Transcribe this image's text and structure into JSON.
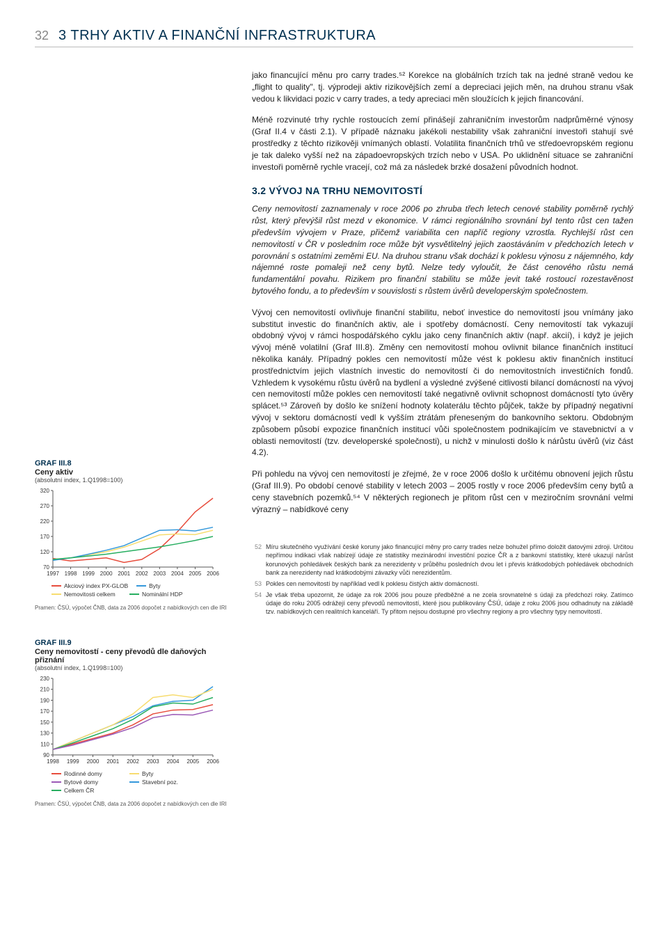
{
  "header": {
    "page_number": "32",
    "title": "3 TRHY AKTIV A FINANČNÍ INFRASTRUKTURA"
  },
  "paragraphs": {
    "p1": "jako financující měnu pro carry trades.⁵² Korekce na globálních trzích tak na jedné straně vedou ke „flight to quality\", tj. výprodeji aktiv rizikovějších zemí a depreciaci jejich měn, na druhou stranu však vedou k likvidaci pozic v carry trades, a tedy apreciaci měn sloužících k jejich financování.",
    "p2": "Méně rozvinuté trhy rychle rostoucích zemí přinášejí zahraničním investorům nadprůměrné výnosy (Graf II.4 v části 2.1). V případě náznaku jakékoli nestability však zahraniční investoři stahují své prostředky z těchto rizikověji vnímaných oblastí. Volatilita finančních trhů ve středoevropském regionu je tak daleko vyšší než na západoevropských trzích nebo v USA. Po uklidnění situace se zahraniční investoři poměrně rychle vracejí, což má za následek brzké dosažení původních hodnot.",
    "section_heading": "3.2 VÝVOJ NA TRHU NEMOVITOSTÍ",
    "intro": "Ceny nemovitostí zaznamenaly v roce 2006 po zhruba třech letech cenové stability poměrně rychlý růst, který převýšil růst mezd v ekonomice. V rámci regionálního srovnání byl tento růst cen tažen především vývojem v Praze, přičemž variabilita cen napříč regiony vzrostla. Rychlejší růst cen nemovitostí v ČR v posledním roce může být vysvětlitelný jejich zaostáváním v předchozích letech v porovnání s ostatními zeměmi EU. Na druhou stranu však dochází k poklesu výnosu z nájemného, kdy nájemné roste pomaleji než ceny bytů. Nelze tedy vyloučit, že část cenového růstu nemá fundamentální povahu. Rizikem pro finanční stabilitu se může jevit také rostoucí rozestavěnost bytového fondu, a to především v souvislosti s růstem úvěrů developerským společnostem.",
    "p3": "Vývoj cen nemovitostí ovlivňuje finanční stabilitu, neboť investice do nemovitostí jsou vnímány jako substitut investic do finančních aktiv, ale i spotřeby domácností. Ceny nemovitostí tak vykazují obdobný vývoj v rámci hospodářského cyklu jako ceny finančních aktiv (např. akcií), i když je jejich vývoj méně volatilní (Graf III.8). Změny cen nemovitostí mohou ovlivnit bilance finančních institucí několika kanály. Případný pokles cen nemovitostí může vést k poklesu aktiv finančních institucí prostřednictvím jejich vlastních investic do nemovitostí či do nemovitostních investičních fondů. Vzhledem k vysokému růstu úvěrů na bydlení a výsledné zvýšené citlivosti bilancí domácností na vývoj cen nemovitostí může pokles cen nemovitostí také negativně ovlivnit schopnost domácností tyto úvěry splácet.⁵³ Zároveň by došlo ke snížení hodnoty kolaterálu těchto půjček, takže by případný negativní vývoj v sektoru domácností vedl k vyšším ztrátám přeneseným do bankovního sektoru. Obdobným způsobem působí expozice finančních institucí vůči společnostem podnikajícím ve stavebnictví a v oblasti nemovitostí (tzv. developerské společnosti), u nichž v minulosti došlo k nárůstu úvěrů (viz část 4.2).",
    "p4": "Při pohledu na vývoj cen nemovitostí je zřejmé, že v roce 2006 došlo k určitému obnovení jejich růstu (Graf III.9). Po období cenové stability v letech 2003 – 2005 rostly v roce 2006 především ceny bytů a ceny stavebních pozemků.⁵⁴ V některých regionech je přitom růst cen v meziročním srovnání velmi výrazný – nabídkové ceny"
  },
  "chart8": {
    "type": "line",
    "label": "GRAF III.8",
    "title": "Ceny aktiv",
    "subtitle": "(absolutní index, 1.Q1998=100)",
    "x_categories": [
      "1997",
      "1998",
      "1999",
      "2000",
      "2001",
      "2002",
      "2003",
      "2004",
      "2005",
      "2006"
    ],
    "ylim": [
      70,
      320
    ],
    "yticks": [
      70,
      120,
      170,
      220,
      270,
      320
    ],
    "series": [
      {
        "name": "Akciový index PX-GLOB",
        "color": "#e74c3c",
        "values": [
          98,
          90,
          95,
          100,
          85,
          95,
          130,
          185,
          250,
          295
        ]
      },
      {
        "name": "Nemovitosti celkem",
        "color": "#f7dc6f",
        "values": [
          95,
          100,
          110,
          120,
          135,
          155,
          175,
          178,
          176,
          190
        ]
      },
      {
        "name": "Byty",
        "color": "#3498db",
        "values": [
          92,
          100,
          112,
          125,
          140,
          165,
          190,
          192,
          188,
          200
        ]
      },
      {
        "name": "Nominální HDP",
        "color": "#27ae60",
        "values": [
          95,
          100,
          106,
          112,
          120,
          128,
          136,
          146,
          157,
          170
        ]
      }
    ],
    "legend": [
      {
        "label": "Akciový index PX-GLOB",
        "color": "#e74c3c"
      },
      {
        "label": "Byty",
        "color": "#3498db"
      },
      {
        "label": "Nemovitosti celkem",
        "color": "#f7dc6f"
      },
      {
        "label": "Nominální HDP",
        "color": "#27ae60"
      }
    ],
    "source": "Pramen: ČSÚ, výpočet ČNB, data za 2006 dopočet z nabídkových cen dle IRI",
    "grid_color": "#d0d0d0",
    "axis_color": "#555",
    "line_width": 1.5,
    "font_size_tick": 8
  },
  "chart9": {
    "type": "line",
    "label": "GRAF III.9",
    "title": "Ceny nemovitostí - ceny převodů dle daňových přiznání",
    "subtitle": "(absolutní index, 1.Q1998=100)",
    "x_categories": [
      "1998",
      "1999",
      "2000",
      "2001",
      "2002",
      "2003",
      "2004",
      "2005",
      "2006"
    ],
    "ylim": [
      90,
      230
    ],
    "yticks": [
      90,
      110,
      130,
      150,
      170,
      190,
      210,
      230
    ],
    "series": [
      {
        "name": "Rodinné domy",
        "color": "#e74c3c",
        "values": [
          100,
          110,
          120,
          130,
          145,
          165,
          172,
          173,
          182
        ]
      },
      {
        "name": "Stavební poz.",
        "color": "#3498db",
        "values": [
          100,
          115,
          130,
          145,
          160,
          180,
          188,
          190,
          215
        ]
      },
      {
        "name": "Byty",
        "color": "#f7dc6f",
        "values": [
          100,
          115,
          130,
          145,
          165,
          195,
          200,
          195,
          210
        ]
      },
      {
        "name": "Celkem ČR",
        "color": "#27ae60",
        "values": [
          100,
          112,
          125,
          138,
          155,
          178,
          185,
          183,
          195
        ]
      },
      {
        "name": "Bytové domy",
        "color": "#9b59b6",
        "values": [
          100,
          108,
          118,
          128,
          140,
          158,
          164,
          163,
          172
        ]
      }
    ],
    "legend": [
      {
        "label": "Rodinné domy",
        "color": "#e74c3c"
      },
      {
        "label": "Byty",
        "color": "#f7dc6f"
      },
      {
        "label": "Bytové domy",
        "color": "#9b59b6"
      },
      {
        "label": "Stavební poz.",
        "color": "#3498db"
      },
      {
        "label": "Celkem ČR",
        "color": "#27ae60"
      }
    ],
    "source": "Pramen: ČSÚ, výpočet ČNB, data za 2006 dopočet z nabídkových cen dle IRI",
    "grid_color": "#d0d0d0",
    "axis_color": "#555",
    "line_width": 1.5,
    "font_size_tick": 8
  },
  "footnotes": [
    {
      "num": "52",
      "text": "Míru skutečného využívání české koruny jako financující měny pro carry trades nelze bohužel přímo doložit datovými zdroji. Určitou nepřímou indikaci však nabízejí údaje ze statistiky mezinárodní investiční pozice ČR a z bankovní statistiky, které ukazují nárůst korunových pohledávek českých bank za nerezidenty v průběhu posledních dvou let i převis krátkodobých pohledávek obchodních bank za nerezidenty nad krátkodobými závazky vůči nerezidentům."
    },
    {
      "num": "53",
      "text": "Pokles cen nemovitostí by například vedl k poklesu čistých aktiv domácností."
    },
    {
      "num": "54",
      "text": "Je však třeba upozornit, že údaje za rok 2006 jsou pouze předběžné a ne zcela srovnatelné s údaji za předchozí roky. Zatímco údaje do roku 2005 odrážejí ceny převodů nemovitostí, které jsou publikovány ČSÚ, údaje z roku 2006 jsou odhadnuty na základě tzv. nabídkových cen realitních kanceláří. Ty přitom nejsou dostupné pro všechny regiony a pro všechny typy nemovitostí."
    }
  ]
}
